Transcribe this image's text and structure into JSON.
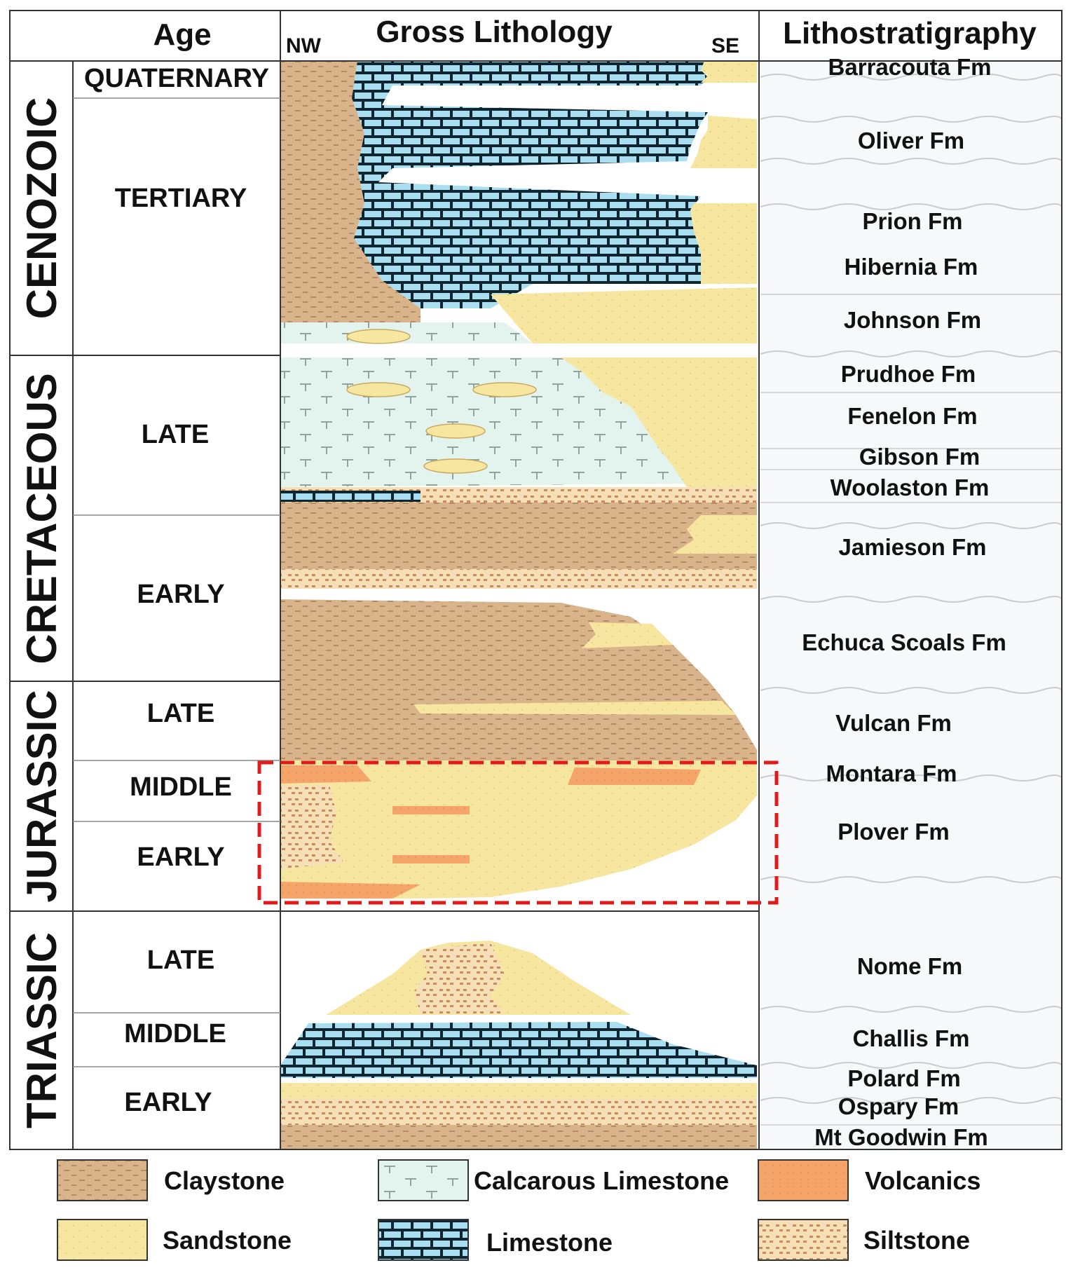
{
  "headers": {
    "age": "Age",
    "lithology": "Gross Lithology",
    "nw": "NW",
    "se": "SE",
    "lithostratigraphy": "Lithostratigraphy"
  },
  "eras": [
    {
      "label": "CENOZOIC"
    },
    {
      "label": "CRETACEOUS"
    },
    {
      "label": "JURASSIC"
    },
    {
      "label": "TRIASSIC"
    }
  ],
  "periods": [
    {
      "label": "QUATERNARY"
    },
    {
      "label": "TERTIARY"
    },
    {
      "label": "LATE"
    },
    {
      "label": "EARLY"
    },
    {
      "label": "LATE"
    },
    {
      "label": "MIDDLE"
    },
    {
      "label": "EARLY"
    },
    {
      "label": "LATE"
    },
    {
      "label": "MIDDLE"
    },
    {
      "label": "EARLY"
    }
  ],
  "formations": [
    {
      "label": "Barracouta Fm"
    },
    {
      "label": "Oliver Fm"
    },
    {
      "label": "Prion Fm"
    },
    {
      "label": "Hibernia Fm"
    },
    {
      "label": "Johnson Fm"
    },
    {
      "label": "Prudhoe Fm"
    },
    {
      "label": "Fenelon Fm"
    },
    {
      "label": "Gibson Fm"
    },
    {
      "label": "Woolaston Fm"
    },
    {
      "label": "Jamieson Fm"
    },
    {
      "label": "Echuca Scoals Fm"
    },
    {
      "label": "Vulcan Fm"
    },
    {
      "label": "Montara Fm"
    },
    {
      "label": "Plover Fm"
    },
    {
      "label": "Nome Fm"
    },
    {
      "label": "Challis Fm"
    },
    {
      "label": "Polard Fm"
    },
    {
      "label": "Ospary Fm"
    },
    {
      "label": "Mt Goodwin Fm"
    }
  ],
  "legend": [
    {
      "label": "Claystone",
      "pattern": "claystone"
    },
    {
      "label": "Calcarous Limestone",
      "pattern": "calcareous-limestone"
    },
    {
      "label": "Volcanics",
      "pattern": "volcanics"
    },
    {
      "label": "Sandstone",
      "pattern": "sandstone"
    },
    {
      "label": "Limestone",
      "pattern": "limestone"
    },
    {
      "label": "Siltstone",
      "pattern": "siltstone"
    }
  ],
  "colors": {
    "claystone": "#d9b48a",
    "sandstone": "#f7e6a0",
    "calcareous_limestone": "#e3f3ee",
    "limestone": "#a9def0",
    "volcanics": "#f6a56a",
    "siltstone": "#f6dfb6",
    "highlight_box": "#e01b1b"
  }
}
